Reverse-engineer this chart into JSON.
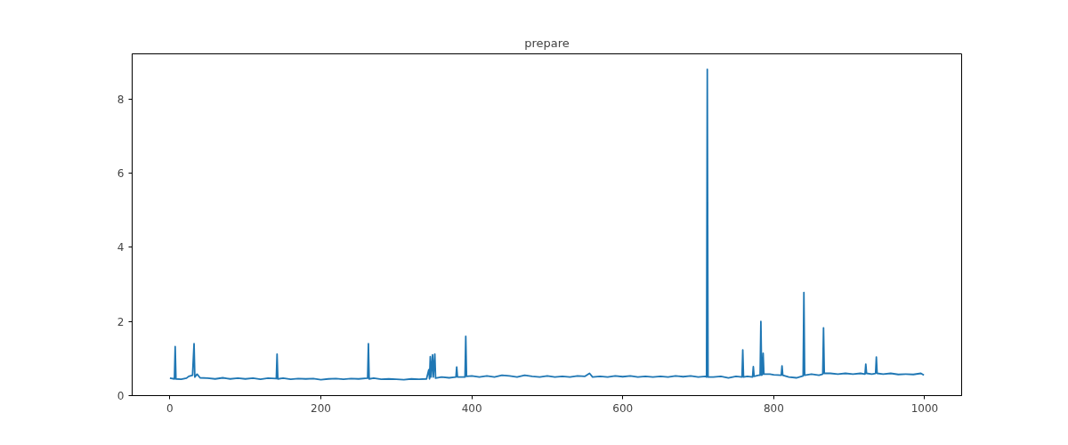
{
  "chart_data": {
    "type": "line",
    "title": "prepare",
    "x": [
      0,
      6,
      7,
      8,
      15,
      22,
      25,
      30,
      32,
      33,
      36,
      40,
      50,
      60,
      70,
      80,
      90,
      100,
      110,
      120,
      130,
      141,
      142,
      143,
      150,
      160,
      170,
      180,
      190,
      200,
      210,
      220,
      230,
      240,
      250,
      262,
      263,
      264,
      270,
      280,
      290,
      300,
      310,
      320,
      330,
      340,
      343,
      344,
      345,
      346,
      348,
      349,
      351,
      352,
      360,
      370,
      379,
      380,
      381,
      391,
      392,
      393,
      400,
      410,
      420,
      430,
      440,
      450,
      460,
      470,
      480,
      490,
      500,
      510,
      520,
      530,
      540,
      550,
      556,
      560,
      570,
      580,
      590,
      600,
      610,
      620,
      630,
      640,
      650,
      660,
      670,
      680,
      690,
      700,
      710,
      711,
      712,
      713,
      720,
      730,
      740,
      750,
      758,
      759,
      760,
      765,
      772,
      773,
      774,
      780,
      782,
      783,
      784,
      785,
      786,
      787,
      795,
      800,
      810,
      811,
      812,
      820,
      830,
      839,
      840,
      841,
      850,
      860,
      865,
      866,
      867,
      875,
      885,
      895,
      905,
      915,
      921,
      922,
      923,
      930,
      935,
      936,
      937,
      945,
      955,
      965,
      975,
      985,
      995,
      999
    ],
    "series": [
      {
        "color": "#1f77b4",
        "values": [
          0.47,
          0.45,
          1.32,
          0.45,
          0.44,
          0.47,
          0.52,
          0.55,
          1.4,
          0.5,
          0.58,
          0.48,
          0.47,
          0.45,
          0.48,
          0.45,
          0.47,
          0.45,
          0.47,
          0.44,
          0.47,
          0.46,
          1.12,
          0.45,
          0.47,
          0.44,
          0.46,
          0.45,
          0.46,
          0.43,
          0.45,
          0.46,
          0.44,
          0.46,
          0.45,
          0.47,
          1.4,
          0.45,
          0.47,
          0.44,
          0.45,
          0.44,
          0.43,
          0.45,
          0.44,
          0.45,
          0.7,
          0.45,
          1.05,
          0.5,
          1.1,
          0.5,
          1.12,
          0.47,
          0.5,
          0.48,
          0.5,
          0.77,
          0.5,
          0.5,
          1.6,
          0.52,
          0.53,
          0.5,
          0.53,
          0.5,
          0.55,
          0.53,
          0.5,
          0.55,
          0.52,
          0.5,
          0.53,
          0.5,
          0.52,
          0.5,
          0.53,
          0.52,
          0.6,
          0.5,
          0.52,
          0.5,
          0.53,
          0.51,
          0.53,
          0.5,
          0.52,
          0.5,
          0.52,
          0.5,
          0.53,
          0.51,
          0.53,
          0.5,
          0.52,
          0.5,
          8.8,
          0.5,
          0.5,
          0.52,
          0.48,
          0.52,
          0.5,
          1.23,
          0.5,
          0.52,
          0.5,
          0.78,
          0.52,
          0.55,
          0.55,
          2.0,
          0.55,
          0.57,
          1.14,
          0.58,
          0.58,
          0.56,
          0.55,
          0.8,
          0.55,
          0.5,
          0.48,
          0.53,
          2.78,
          0.55,
          0.58,
          0.55,
          0.58,
          1.83,
          0.6,
          0.6,
          0.58,
          0.6,
          0.58,
          0.6,
          0.58,
          0.85,
          0.6,
          0.58,
          0.6,
          1.04,
          0.6,
          0.58,
          0.6,
          0.57,
          0.58,
          0.57,
          0.6,
          0.55
        ]
      }
    ],
    "xlim": [
      -50,
      1049
    ],
    "ylim": [
      0,
      9.22
    ],
    "xticks": [
      0,
      200,
      400,
      600,
      800,
      1000
    ],
    "yticks": [
      0,
      2,
      4,
      6,
      8
    ],
    "grid": false
  }
}
